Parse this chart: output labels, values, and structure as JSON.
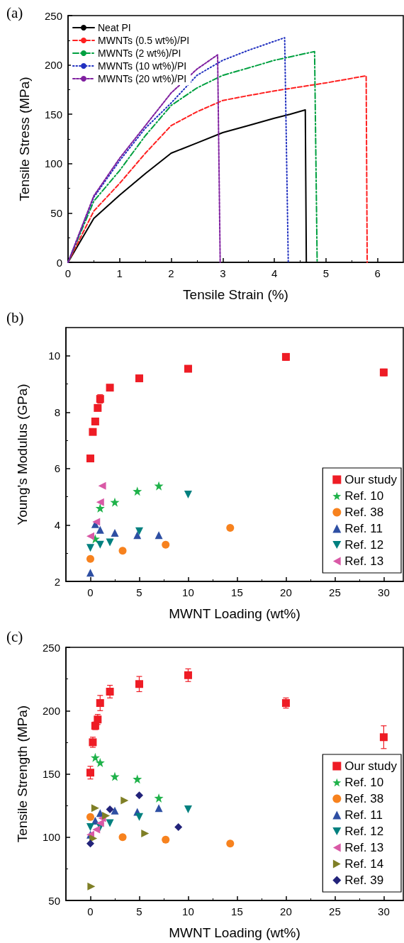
{
  "chart_data": [
    {
      "type": "line",
      "title": "(a)",
      "xlabel": "Tensile Strain (%)",
      "ylabel": "Tensile Stress (MPa)",
      "xlim": [
        0,
        6.5
      ],
      "ylim": [
        0,
        250
      ],
      "xticks": [
        0,
        1,
        2,
        3,
        4,
        5,
        6
      ],
      "yticks": [
        0,
        50,
        100,
        150,
        200,
        250
      ],
      "grid": false,
      "legend": "top left",
      "marker": "none",
      "series": [
        {
          "name": "Neat PI",
          "color": "#000000",
          "line_style": "solid",
          "x": [
            0,
            0.5,
            1,
            1.5,
            2,
            2.5,
            3,
            3.5,
            4,
            4.3,
            4.6,
            4.62
          ],
          "values": [
            0,
            44.5,
            68,
            90,
            110.6,
            121,
            131.5,
            138.6,
            146,
            150,
            154.4,
            0
          ]
        },
        {
          "name": "MWNTs (0.5 wt%)/PI",
          "color": "#ff2020",
          "line_style": "dashed",
          "x": [
            0,
            0.5,
            1,
            1.5,
            2,
            2.5,
            3,
            3.5,
            4,
            5,
            5.78,
            5.8
          ],
          "values": [
            0,
            52,
            80,
            110.6,
            138.6,
            152.6,
            164,
            169,
            173.7,
            181.8,
            189,
            0
          ]
        },
        {
          "name": "MWNTs (2 wt%)/PI",
          "color": "#00a040",
          "line_style": "dashdot",
          "x": [
            0,
            0.5,
            1,
            1.5,
            2,
            2.5,
            3,
            3.5,
            4,
            4.78,
            4.83
          ],
          "values": [
            0,
            62,
            93,
            128.4,
            159,
            176.7,
            189.5,
            197,
            204.7,
            213.6,
            0
          ]
        },
        {
          "name": "MWNTs (10 wt%)/PI",
          "color": "#2030c0",
          "line_style": "dotted",
          "x": [
            0,
            0.5,
            1,
            1.5,
            2,
            2.5,
            3,
            3.5,
            4.2,
            4.27
          ],
          "values": [
            0,
            66,
            103,
            136,
            161.5,
            189.5,
            204.7,
            214.9,
            227.6,
            0
          ]
        },
        {
          "name": "MWNTs (20 wt%)/PI",
          "color": "#8020a0",
          "line_style": "shortdash",
          "x": [
            0,
            0.5,
            1,
            1.5,
            2,
            2.5,
            2.9,
            2.95
          ],
          "values": [
            0,
            67.4,
            105.5,
            138.6,
            171.7,
            195.8,
            210.3,
            0
          ]
        }
      ]
    },
    {
      "type": "scatter",
      "title": "(b)",
      "xlabel": "MWNT Loading (wt%)",
      "ylabel": "Young's Modulus (GPa)",
      "xlim": [
        -2.5,
        32
      ],
      "ylim": [
        2,
        11
      ],
      "xticks": [
        0,
        5,
        10,
        15,
        20,
        25,
        30
      ],
      "yticks": [
        2,
        4,
        6,
        8,
        10
      ],
      "grid": false,
      "legend": "bottom right",
      "series": [
        {
          "name": "Our study",
          "color": "#ee1c25",
          "marker": "square",
          "x": [
            0,
            0.25,
            0.5,
            0.75,
            1,
            2,
            5,
            10,
            20,
            30
          ],
          "values": [
            6.36,
            7.3,
            7.67,
            8.15,
            8.47,
            8.87,
            9.2,
            9.54,
            9.96,
            9.41
          ],
          "errors": [
            0.1,
            0.05,
            0.08,
            0.08,
            0.15,
            0.08,
            0.06,
            0.08,
            0.12,
            0.12
          ]
        },
        {
          "name": "Ref. 10",
          "color": "#1fb24a",
          "marker": "star",
          "x": [
            0.5,
            1,
            2.5,
            4.8,
            7
          ],
          "values": [
            3.51,
            4.6,
            4.81,
            5.2,
            5.39
          ]
        },
        {
          "name": "Ref. 38",
          "color": "#f7821e",
          "marker": "circle",
          "x": [
            0,
            3.3,
            7.7,
            14.3
          ],
          "values": [
            2.8,
            3.09,
            3.3,
            3.9
          ]
        },
        {
          "name": "Ref. 11",
          "color": "#2e4fa3",
          "marker": "triangle",
          "x": [
            0,
            0.5,
            1,
            2.5,
            4.8,
            7
          ],
          "values": [
            2.31,
            4.03,
            3.83,
            3.72,
            3.64,
            3.64
          ]
        },
        {
          "name": "Ref. 12",
          "color": "#00807f",
          "marker": "triangle-down",
          "x": [
            0,
            1,
            2,
            5,
            10
          ],
          "values": [
            3.19,
            3.3,
            3.38,
            3.78,
            5.08
          ]
        },
        {
          "name": "Ref. 13",
          "color": "#d959a6",
          "marker": "triangle-left",
          "x": [
            0,
            0.6,
            1,
            1.2
          ],
          "values": [
            3.6,
            4.11,
            4.81,
            5.39
          ]
        }
      ]
    },
    {
      "type": "scatter",
      "title": "(c)",
      "xlabel": "MWNT Loading (wt%)",
      "ylabel": "Tensile Strength (MPa)",
      "xlim": [
        -2.5,
        32
      ],
      "ylim": [
        50,
        250
      ],
      "xticks": [
        0,
        5,
        10,
        15,
        20,
        25,
        30
      ],
      "yticks": [
        50,
        100,
        150,
        200,
        250
      ],
      "grid": false,
      "legend": "bottom right",
      "series": [
        {
          "name": "Our study",
          "color": "#ee1c25",
          "marker": "square",
          "x": [
            0,
            0.25,
            0.5,
            0.75,
            1,
            2,
            5,
            10,
            20,
            30
          ],
          "values": [
            151,
            175,
            188,
            193,
            206,
            215,
            221,
            228,
            206,
            179
          ],
          "errors": [
            5,
            4,
            3,
            4,
            6,
            5,
            6,
            5,
            4,
            9
          ]
        },
        {
          "name": "Ref. 10",
          "color": "#1fb24a",
          "marker": "star",
          "x": [
            0.5,
            1,
            2.5,
            4.8,
            7
          ],
          "values": [
            163,
            159,
            148,
            146,
            131
          ]
        },
        {
          "name": "Ref. 38",
          "color": "#f7821e",
          "marker": "circle",
          "x": [
            0,
            3.3,
            7.7,
            14.3
          ],
          "values": [
            116,
            100,
            98,
            95
          ]
        },
        {
          "name": "Ref. 11",
          "color": "#2e4fa3",
          "marker": "triangle",
          "x": [
            0,
            0.5,
            1,
            2.5,
            4.8,
            7
          ],
          "values": [
            102,
            113,
            119,
            121,
            120,
            123
          ]
        },
        {
          "name": "Ref. 12",
          "color": "#00807f",
          "marker": "triangle-down",
          "x": [
            0,
            1,
            2,
            5,
            10
          ],
          "values": [
            108,
            108,
            111,
            116,
            122
          ]
        },
        {
          "name": "Ref. 13",
          "color": "#d959a6",
          "marker": "triangle-left",
          "x": [
            0,
            0.6,
            1,
            1.2
          ],
          "values": [
            102,
            106,
            111,
            115
          ]
        },
        {
          "name": "Ref. 14",
          "color": "#7f7f26",
          "marker": "triangle-right",
          "x": [
            0.1,
            0.3,
            0.5,
            1.6,
            3.5,
            5.6
          ],
          "values": [
            61,
            99,
            123,
            117,
            129,
            103
          ]
        },
        {
          "name": "Ref. 39",
          "color": "#22237a",
          "marker": "diamond",
          "x": [
            0,
            2,
            5,
            9
          ],
          "values": [
            95,
            122,
            133,
            108
          ]
        }
      ]
    }
  ]
}
